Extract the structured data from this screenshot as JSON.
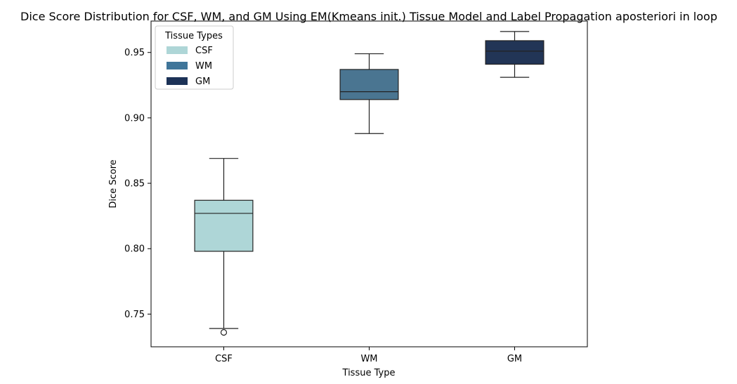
{
  "chart_data": {
    "type": "box",
    "title": "Dice Score Distribution for CSF, WM, and GM Using EM(Kmeans init.) Tissue Model and Label Propagation aposteriori in loop",
    "xlabel": "Tissue Type",
    "ylabel": "Dice Score",
    "ylim": [
      0.725,
      0.974
    ],
    "yticks": [
      0.75,
      0.8,
      0.85,
      0.9,
      0.95
    ],
    "ytick_labels": [
      "0.75",
      "0.80",
      "0.85",
      "0.90",
      "0.95"
    ],
    "categories": [
      "CSF",
      "WM",
      "GM"
    ],
    "boxes": [
      {
        "category": "CSF",
        "whisker_low": 0.739,
        "q1": 0.798,
        "median": 0.827,
        "q3": 0.837,
        "whisker_high": 0.869,
        "outliers": [
          0.736
        ],
        "color": "#aed6d7"
      },
      {
        "category": "WM",
        "whisker_low": 0.888,
        "q1": 0.914,
        "median": 0.92,
        "q3": 0.937,
        "whisker_high": 0.949,
        "outliers": [],
        "color": "#4a7591"
      },
      {
        "category": "GM",
        "whisker_low": 0.931,
        "q1": 0.941,
        "median": 0.951,
        "q3": 0.959,
        "whisker_high": 0.966,
        "outliers": [],
        "color": "#223556"
      }
    ],
    "legend": {
      "title": "Tissue Types",
      "position": "top-left",
      "entries": [
        {
          "label": "CSF",
          "color": "#aed6d7"
        },
        {
          "label": "WM",
          "color": "#3f7599"
        },
        {
          "label": "GM",
          "color": "#1c3257"
        }
      ]
    }
  }
}
